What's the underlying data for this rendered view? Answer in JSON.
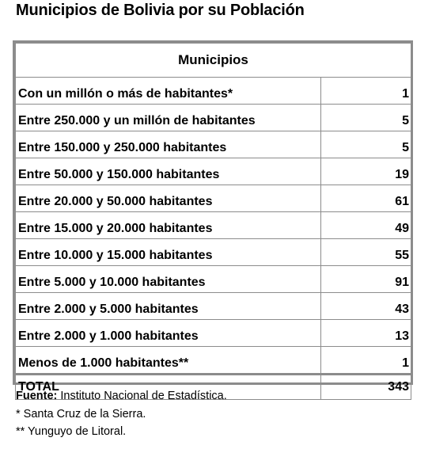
{
  "title": "Municipios de Bolivia por su Población",
  "table": {
    "header": "Municipios",
    "rows": [
      {
        "label": "Con un millón o más de habitantes*",
        "count": "1"
      },
      {
        "label": "Entre 250.000 y un millón de habitantes",
        "count": "5"
      },
      {
        "label": "Entre 150.000 y 250.000 habitantes",
        "count": "5"
      },
      {
        "label": "Entre 50.000 y 150.000 habitantes",
        "count": "19"
      },
      {
        "label": "Entre 20.000 y 50.000 habitantes",
        "count": "61"
      },
      {
        "label": "Entre 15.000 y 20.000 habitantes",
        "count": "49"
      },
      {
        "label": "Entre 10.000 y 15.000 habitantes",
        "count": "55"
      },
      {
        "label": "Entre 5.000 y 10.000 habitantes",
        "count": "91"
      },
      {
        "label": "Entre 2.000 y 5.000 habitantes",
        "count": "43"
      },
      {
        "label": "Entre 2.000 y 1.000 habitantes",
        "count": "13"
      },
      {
        "label": "Menos de 1.000 habitantes**",
        "count": "1"
      }
    ],
    "total_label": "TOTAL",
    "total_value": "343"
  },
  "notes": {
    "source_label": "Fuente:",
    "source_text": "Instituto Nacional de Estadística.",
    "note1": "* Santa Cruz de la Sierra.",
    "note2": "** Yunguyo de Litoral."
  },
  "colors": {
    "border": "#8c8c8c"
  }
}
